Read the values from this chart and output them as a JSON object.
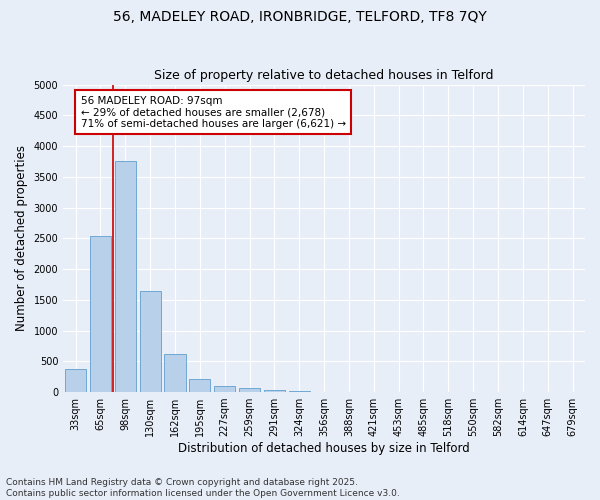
{
  "title_line1": "56, MADELEY ROAD, IRONBRIDGE, TELFORD, TF8 7QY",
  "title_line2": "Size of property relative to detached houses in Telford",
  "xlabel": "Distribution of detached houses by size in Telford",
  "ylabel": "Number of detached properties",
  "categories": [
    "33sqm",
    "65sqm",
    "98sqm",
    "130sqm",
    "162sqm",
    "195sqm",
    "227sqm",
    "259sqm",
    "291sqm",
    "324sqm",
    "356sqm",
    "388sqm",
    "421sqm",
    "453sqm",
    "485sqm",
    "518sqm",
    "550sqm",
    "582sqm",
    "614sqm",
    "647sqm",
    "679sqm"
  ],
  "values": [
    380,
    2530,
    3760,
    1650,
    620,
    220,
    100,
    60,
    40,
    20,
    5,
    2,
    1,
    0,
    0,
    0,
    0,
    0,
    0,
    0,
    0
  ],
  "bar_color": "#b8d0ea",
  "bar_edge_color": "#6fa8d4",
  "bar_edge_width": 0.7,
  "background_color": "#e8eef8",
  "fig_background_color": "#e8eef8",
  "grid_color": "#ffffff",
  "annotation_line1": "56 MADELEY ROAD: 97sqm",
  "annotation_line2": "← 29% of detached houses are smaller (2,678)",
  "annotation_line3": "71% of semi-detached houses are larger (6,621) →",
  "annotation_box_color": "#cc0000",
  "vertical_line_color": "#cc0000",
  "vertical_line_x": 1.5,
  "ylim": [
    0,
    5000
  ],
  "yticks": [
    0,
    500,
    1000,
    1500,
    2000,
    2500,
    3000,
    3500,
    4000,
    4500,
    5000
  ],
  "footer_line1": "Contains HM Land Registry data © Crown copyright and database right 2025.",
  "footer_line2": "Contains public sector information licensed under the Open Government Licence v3.0.",
  "title_fontsize": 10,
  "subtitle_fontsize": 9,
  "axis_label_fontsize": 8.5,
  "tick_fontsize": 7,
  "annotation_fontsize": 7.5,
  "footer_fontsize": 6.5
}
